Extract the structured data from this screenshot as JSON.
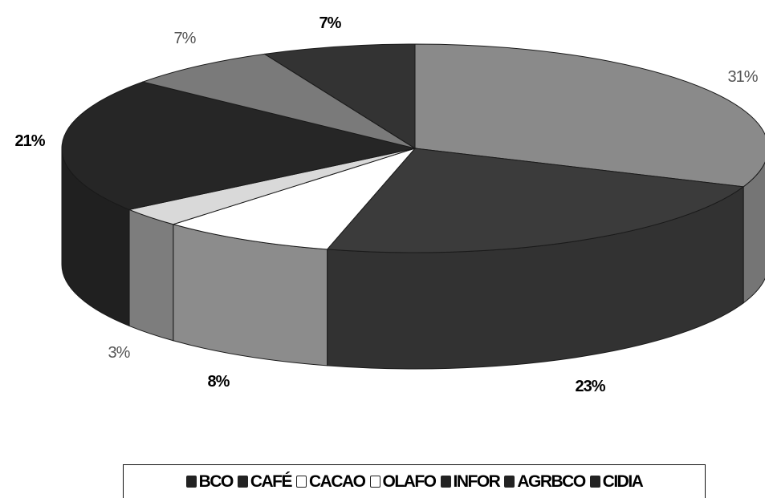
{
  "chart_data": {
    "type": "pie",
    "title": "",
    "categories": [
      "BCO",
      "CAFÉ",
      "CACAO",
      "OLAFO",
      "INFOR",
      "AGRBCO",
      "CIDIA"
    ],
    "series": [
      {
        "values": [
          31,
          23,
          8,
          3,
          21,
          7,
          7
        ]
      }
    ],
    "slices": [
      {
        "value": 31,
        "label": "31%",
        "color": "#8a8a8a"
      },
      {
        "value": 23,
        "label": "23%",
        "color": "#3b3b3b"
      },
      {
        "value": 8,
        "label": "8%",
        "color": "#ffffff"
      },
      {
        "value": 3,
        "label": "3%",
        "color": "#d9d9d9"
      },
      {
        "value": 21,
        "label": "21%",
        "color": "#262626"
      },
      {
        "value": 7,
        "label": "7%",
        "color": "#7a7a7a"
      },
      {
        "value": 7,
        "label": "7%",
        "color": "#333333"
      }
    ],
    "legend": {
      "position": "bottom",
      "items": [
        {
          "label": "BCO",
          "color": "#222222"
        },
        {
          "label": "CAFÉ",
          "color": "#222222"
        },
        {
          "label": "CACAO",
          "color": "#ffffff"
        },
        {
          "label": "OLAFO",
          "color": "#ffffff"
        },
        {
          "label": "INFOR",
          "color": "#222222"
        },
        {
          "label": "AGRBCO",
          "color": "#222222"
        },
        {
          "label": "CIDIA",
          "color": "#222222"
        }
      ]
    },
    "style": "3d-exploded-tilt"
  }
}
